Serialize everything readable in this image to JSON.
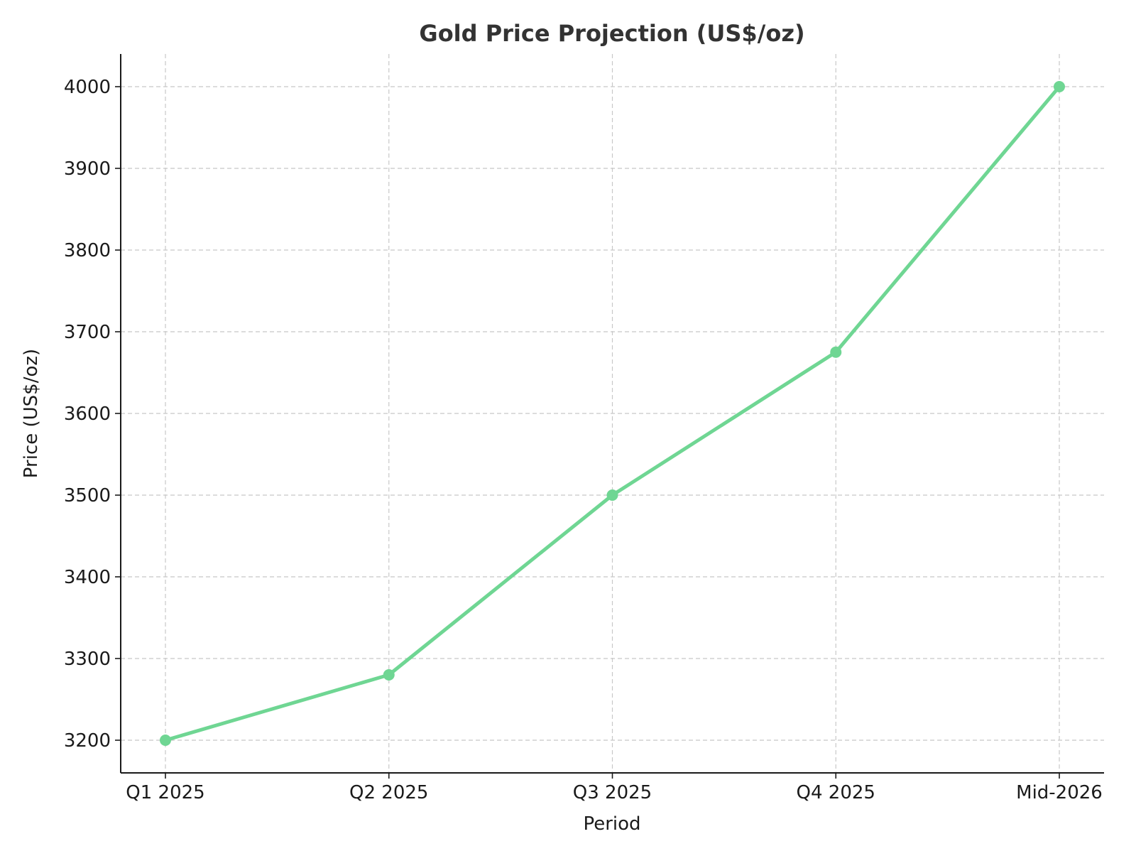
{
  "chart_data": {
    "type": "line",
    "title": "Gold Price Projection (US$/oz)",
    "xlabel": "Period",
    "ylabel": "Price (US$/oz)",
    "categories": [
      "Q1 2025",
      "Q2 2025",
      "Q3 2025",
      "Q4 2025",
      "Mid-2026"
    ],
    "series": [
      {
        "values": [
          3200,
          3280,
          3500,
          3675,
          4000
        ],
        "color": "#6fd693"
      }
    ],
    "yticks": [
      "3200",
      "3300",
      "3400",
      "3500",
      "3600",
      "3700",
      "3800",
      "3900",
      "4000"
    ],
    "ylim": [
      3160,
      4040
    ],
    "grid": true,
    "marker": "circle"
  }
}
